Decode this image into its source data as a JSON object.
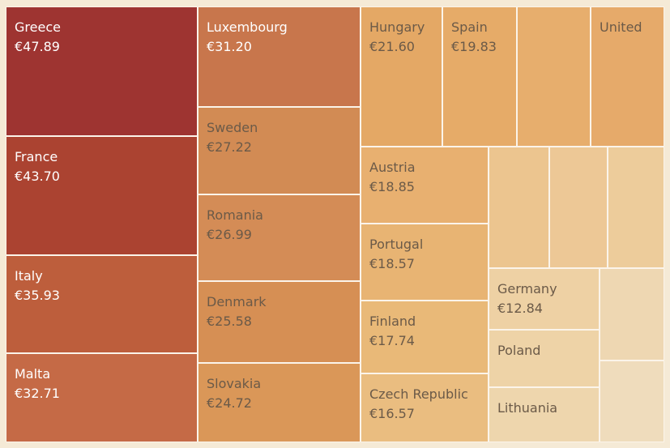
{
  "chart_data": {
    "type": "treemap",
    "value_prefix": "€",
    "items": [
      {
        "name": "Greece",
        "value": 47.89,
        "color": "#9e3431",
        "show_name": true,
        "show_value": true
      },
      {
        "name": "France",
        "value": 43.7,
        "color": "#ab4331",
        "show_name": true,
        "show_value": true
      },
      {
        "name": "Italy",
        "value": 35.93,
        "color": "#bd5e3c",
        "show_name": true,
        "show_value": true
      },
      {
        "name": "Malta",
        "value": 32.71,
        "color": "#c56a46",
        "show_name": true,
        "show_value": true
      },
      {
        "name": "Luxembourg",
        "value": 31.2,
        "color": "#c8764c",
        "show_name": true,
        "show_value": true
      },
      {
        "name": "Sweden",
        "value": 27.22,
        "color": "#d28b54",
        "show_name": true,
        "show_value": true
      },
      {
        "name": "Romania",
        "value": 26.99,
        "color": "#d48c56",
        "show_name": true,
        "show_value": true
      },
      {
        "name": "Denmark",
        "value": 25.58,
        "color": "#d68f54",
        "show_name": true,
        "show_value": true
      },
      {
        "name": "Slovakia",
        "value": 24.72,
        "color": "#da9758",
        "show_name": true,
        "show_value": true
      },
      {
        "name": "Hungary",
        "value": 21.6,
        "color": "#e4a865",
        "show_name": true,
        "show_value": true
      },
      {
        "name": "Spain",
        "value": 19.83,
        "color": "#e6ab68",
        "show_name": true,
        "show_value": true
      },
      {
        "name": "",
        "value": null,
        "color": "#e7ae6d",
        "show_name": false,
        "show_value": false
      },
      {
        "name": "United",
        "value": null,
        "color": "#e6aa6a",
        "show_name": true,
        "show_value": false
      },
      {
        "name": "Austria",
        "value": 18.85,
        "color": "#e8b070",
        "show_name": true,
        "show_value": true
      },
      {
        "name": "Portugal",
        "value": 18.57,
        "color": "#e8b473",
        "show_name": true,
        "show_value": true
      },
      {
        "name": "Finland",
        "value": 17.74,
        "color": "#e9b978",
        "show_name": true,
        "show_value": true
      },
      {
        "name": "Czech Republic",
        "value": 16.57,
        "color": "#eabd80",
        "show_name": true,
        "show_value": true
      },
      {
        "name": "",
        "value": null,
        "color": "#ecc58f",
        "show_name": false,
        "show_value": false
      },
      {
        "name": "",
        "value": null,
        "color": "#edc896",
        "show_name": false,
        "show_value": false
      },
      {
        "name": "",
        "value": null,
        "color": "#edcc9b",
        "show_name": false,
        "show_value": false
      },
      {
        "name": "Germany",
        "value": 12.84,
        "color": "#eed1a4",
        "show_name": true,
        "show_value": true
      },
      {
        "name": "Poland",
        "value": null,
        "color": "#eed3a7",
        "show_name": true,
        "show_value": false
      },
      {
        "name": "Lithuania",
        "value": null,
        "color": "#eed6ad",
        "show_name": true,
        "show_value": false
      },
      {
        "name": "",
        "value": null,
        "color": "#eed7b2",
        "show_name": false,
        "show_value": false
      },
      {
        "name": "",
        "value": null,
        "color": "#efdcbc",
        "show_name": false,
        "show_value": false
      }
    ]
  }
}
